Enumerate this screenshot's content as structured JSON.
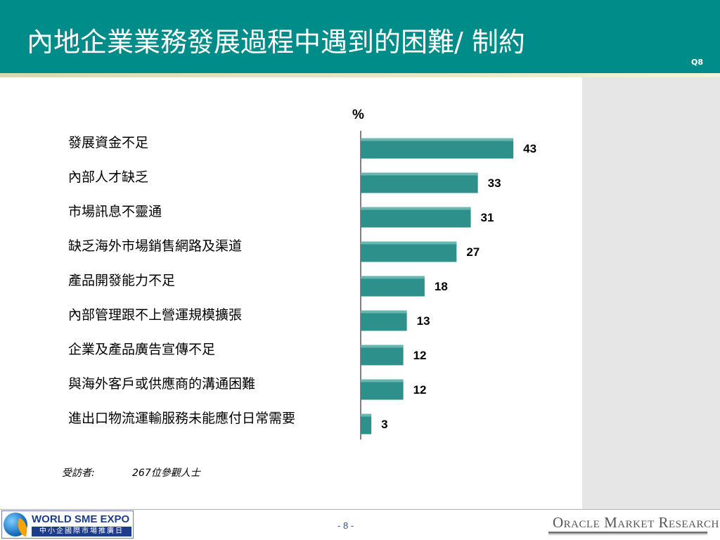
{
  "header": {
    "title": "內地企業業務發展過程中遇到的困難/ 制約",
    "question_code": "Q8",
    "background_color": "#008c88"
  },
  "chart_data": {
    "type": "bar",
    "orientation": "horizontal",
    "unit_label": "%",
    "bar_color": "#2e908a",
    "categories": [
      "發展資金不足",
      "內部人才缺乏",
      "市場訊息不靈通",
      "缺乏海外市場銷售網路及渠道",
      "產品開發能力不足",
      "內部管理跟不上營運規模擴張",
      "企業及產品廣告宣傳不足",
      "與海外客戶或供應商的溝通困難",
      "進出口物流運輸服務未能應付日常需要"
    ],
    "values": [
      43,
      33,
      31,
      27,
      18,
      13,
      12,
      12,
      3
    ],
    "xlim": [
      0,
      60
    ]
  },
  "footnote": {
    "label": "受訪者:",
    "value": "267位參觀人士"
  },
  "footer": {
    "page_number": "- 8 -",
    "left_logo": {
      "line1": "WORLD SME EXPO",
      "line2": "中小企國際市場推廣日",
      "icon": "globe-icon"
    },
    "right_logo": "Oracle Market Research"
  }
}
